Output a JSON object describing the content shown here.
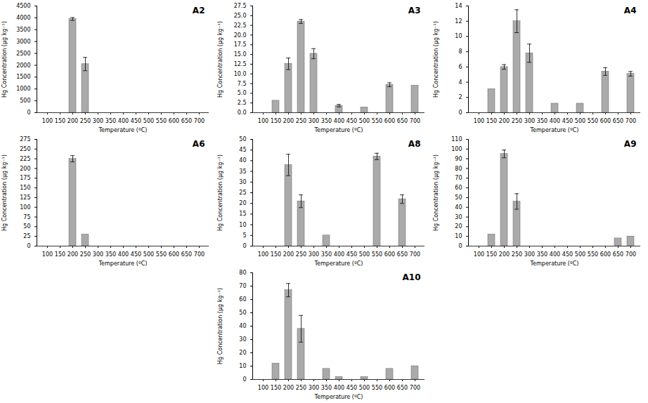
{
  "chart_data": [
    {
      "type": "bar",
      "title": "A2",
      "xlabel": "Temperature (ºC)",
      "ylabel": "Hg Concentration (µg kg⁻¹)",
      "categories": [
        "100",
        "150",
        "200",
        "250",
        "300",
        "350",
        "400",
        "450",
        "500",
        "550",
        "600",
        "650",
        "700"
      ],
      "values": [
        0,
        0,
        3950,
        2050,
        0,
        0,
        0,
        0,
        0,
        0,
        0,
        0,
        0
      ],
      "errors": [
        0,
        0,
        60,
        280,
        0,
        0,
        0,
        0,
        0,
        0,
        0,
        0,
        0
      ],
      "color": "#aaaaaa",
      "ylim": [
        0,
        4500
      ],
      "yticks": [
        0,
        500,
        1000,
        1500,
        2000,
        2500,
        3000,
        3500,
        4000,
        4500
      ],
      "grid": false
    },
    {
      "type": "bar",
      "title": "A3",
      "xlabel": "Temperature (ºC)",
      "ylabel": "Hg Concentration (µg kg⁻¹)",
      "categories": [
        "100",
        "150",
        "200",
        "250",
        "300",
        "350",
        "400",
        "450",
        "500",
        "550",
        "600",
        "650",
        "700"
      ],
      "values": [
        0,
        3.1,
        12.6,
        23.5,
        15.2,
        0,
        1.8,
        0,
        1.4,
        0,
        7.2,
        0,
        7.0
      ],
      "errors": [
        0,
        0,
        1.5,
        0.5,
        1.3,
        0,
        0.3,
        0,
        0,
        0,
        0.5,
        0,
        0
      ],
      "color": "#aaaaaa",
      "ylim": [
        0,
        27.5
      ],
      "yticks": [
        {
          "value": 0,
          "label": "0.0"
        },
        2.5,
        {
          "value": 5,
          "label": "5.0"
        },
        7.5,
        {
          "value": 10,
          "label": "10.0"
        },
        12.5,
        {
          "value": 15,
          "label": "15.0"
        },
        17.5,
        {
          "value": 20,
          "label": "20.0"
        },
        22.5,
        {
          "value": 25,
          "label": "25.0"
        },
        27.5
      ],
      "grid": false
    },
    {
      "type": "bar",
      "title": "A4",
      "xlabel": "Temperature (ºC)",
      "ylabel": "Hg Concentration (µg kg⁻¹)",
      "categories": [
        "100",
        "150",
        "200",
        "250",
        "300",
        "350",
        "400",
        "450",
        "500",
        "550",
        "600",
        "650",
        "700"
      ],
      "values": [
        0,
        3.1,
        6.0,
        12.0,
        7.8,
        0,
        1.2,
        0,
        1.2,
        0,
        5.4,
        0,
        5.1
      ],
      "errors": [
        0,
        0,
        0.3,
        1.5,
        1.2,
        0,
        0,
        0,
        0,
        0,
        0.5,
        0,
        0.3
      ],
      "color": "#aaaaaa",
      "ylim": [
        0,
        14
      ],
      "yticks": [
        0,
        2,
        4,
        6,
        8,
        10,
        12,
        14
      ],
      "grid": false
    },
    {
      "type": "bar",
      "title": "A6",
      "xlabel": "Temperature (ºC)",
      "ylabel": "Hg Concentration (µg kg⁻¹)",
      "categories": [
        "100",
        "150",
        "200",
        "250",
        "300",
        "350",
        "400",
        "450",
        "500",
        "550",
        "600",
        "650",
        "700"
      ],
      "values": [
        0,
        0,
        225,
        30,
        0,
        0,
        0,
        0,
        0,
        0,
        0,
        0,
        0
      ],
      "errors": [
        0,
        0,
        8,
        0,
        0,
        0,
        0,
        0,
        0,
        0,
        0,
        0,
        0
      ],
      "color": "#aaaaaa",
      "ylim": [
        0,
        275
      ],
      "yticks": [
        0,
        25,
        50,
        75,
        100,
        125,
        150,
        175,
        200,
        225,
        250,
        275
      ],
      "grid": false
    },
    {
      "type": "bar",
      "title": "A8",
      "xlabel": "Temperature (ºC)",
      "ylabel": "Hg Concentration (µg kg⁻¹)",
      "categories": [
        "100",
        "150",
        "200",
        "250",
        "300",
        "350",
        "400",
        "450",
        "500",
        "550",
        "600",
        "650",
        "700"
      ],
      "values": [
        0,
        0,
        38,
        21,
        0,
        5,
        0,
        0,
        0,
        42,
        0,
        22,
        0
      ],
      "errors": [
        0,
        0,
        5,
        3,
        0,
        0,
        0,
        0,
        0,
        1.5,
        0,
        2,
        0
      ],
      "color": "#aaaaaa",
      "ylim": [
        0,
        50
      ],
      "yticks": [
        0,
        5,
        10,
        15,
        20,
        25,
        30,
        35,
        40,
        45,
        50
      ],
      "grid": false
    },
    {
      "type": "bar",
      "title": "A9",
      "xlabel": "Temperature (ºC)",
      "ylabel": "Hg Concentration (µg kg⁻¹)",
      "categories": [
        "100",
        "150",
        "200",
        "250",
        "300",
        "350",
        "400",
        "450",
        "500",
        "550",
        "600",
        "650",
        "700"
      ],
      "values": [
        0,
        12,
        95,
        46,
        0,
        0,
        0,
        0,
        0,
        0,
        0,
        8,
        10
      ],
      "errors": [
        0,
        0,
        4,
        8,
        0,
        0,
        0,
        0,
        0,
        0,
        0,
        0,
        0
      ],
      "color": "#aaaaaa",
      "ylim": [
        0,
        110
      ],
      "yticks": [
        0,
        10,
        20,
        30,
        40,
        50,
        60,
        70,
        80,
        90,
        100,
        110
      ],
      "grid": false
    },
    {
      "type": "bar",
      "title": "A10",
      "xlabel": "Temperature (ºC)",
      "ylabel": "Hg Concentration (µg kg⁻¹)",
      "categories": [
        "100",
        "150",
        "200",
        "250",
        "300",
        "350",
        "400",
        "450",
        "500",
        "550",
        "600",
        "650",
        "700"
      ],
      "values": [
        0,
        12,
        67,
        38,
        0,
        8,
        2,
        0,
        2,
        0,
        8,
        0,
        10
      ],
      "errors": [
        0,
        0,
        5,
        10,
        0,
        0,
        0,
        0,
        0,
        0,
        0,
        0,
        0
      ],
      "color": "#aaaaaa",
      "ylim": [
        0,
        80
      ],
      "yticks": [
        0,
        10,
        20,
        30,
        40,
        50,
        60,
        70,
        80
      ],
      "grid": false
    }
  ]
}
